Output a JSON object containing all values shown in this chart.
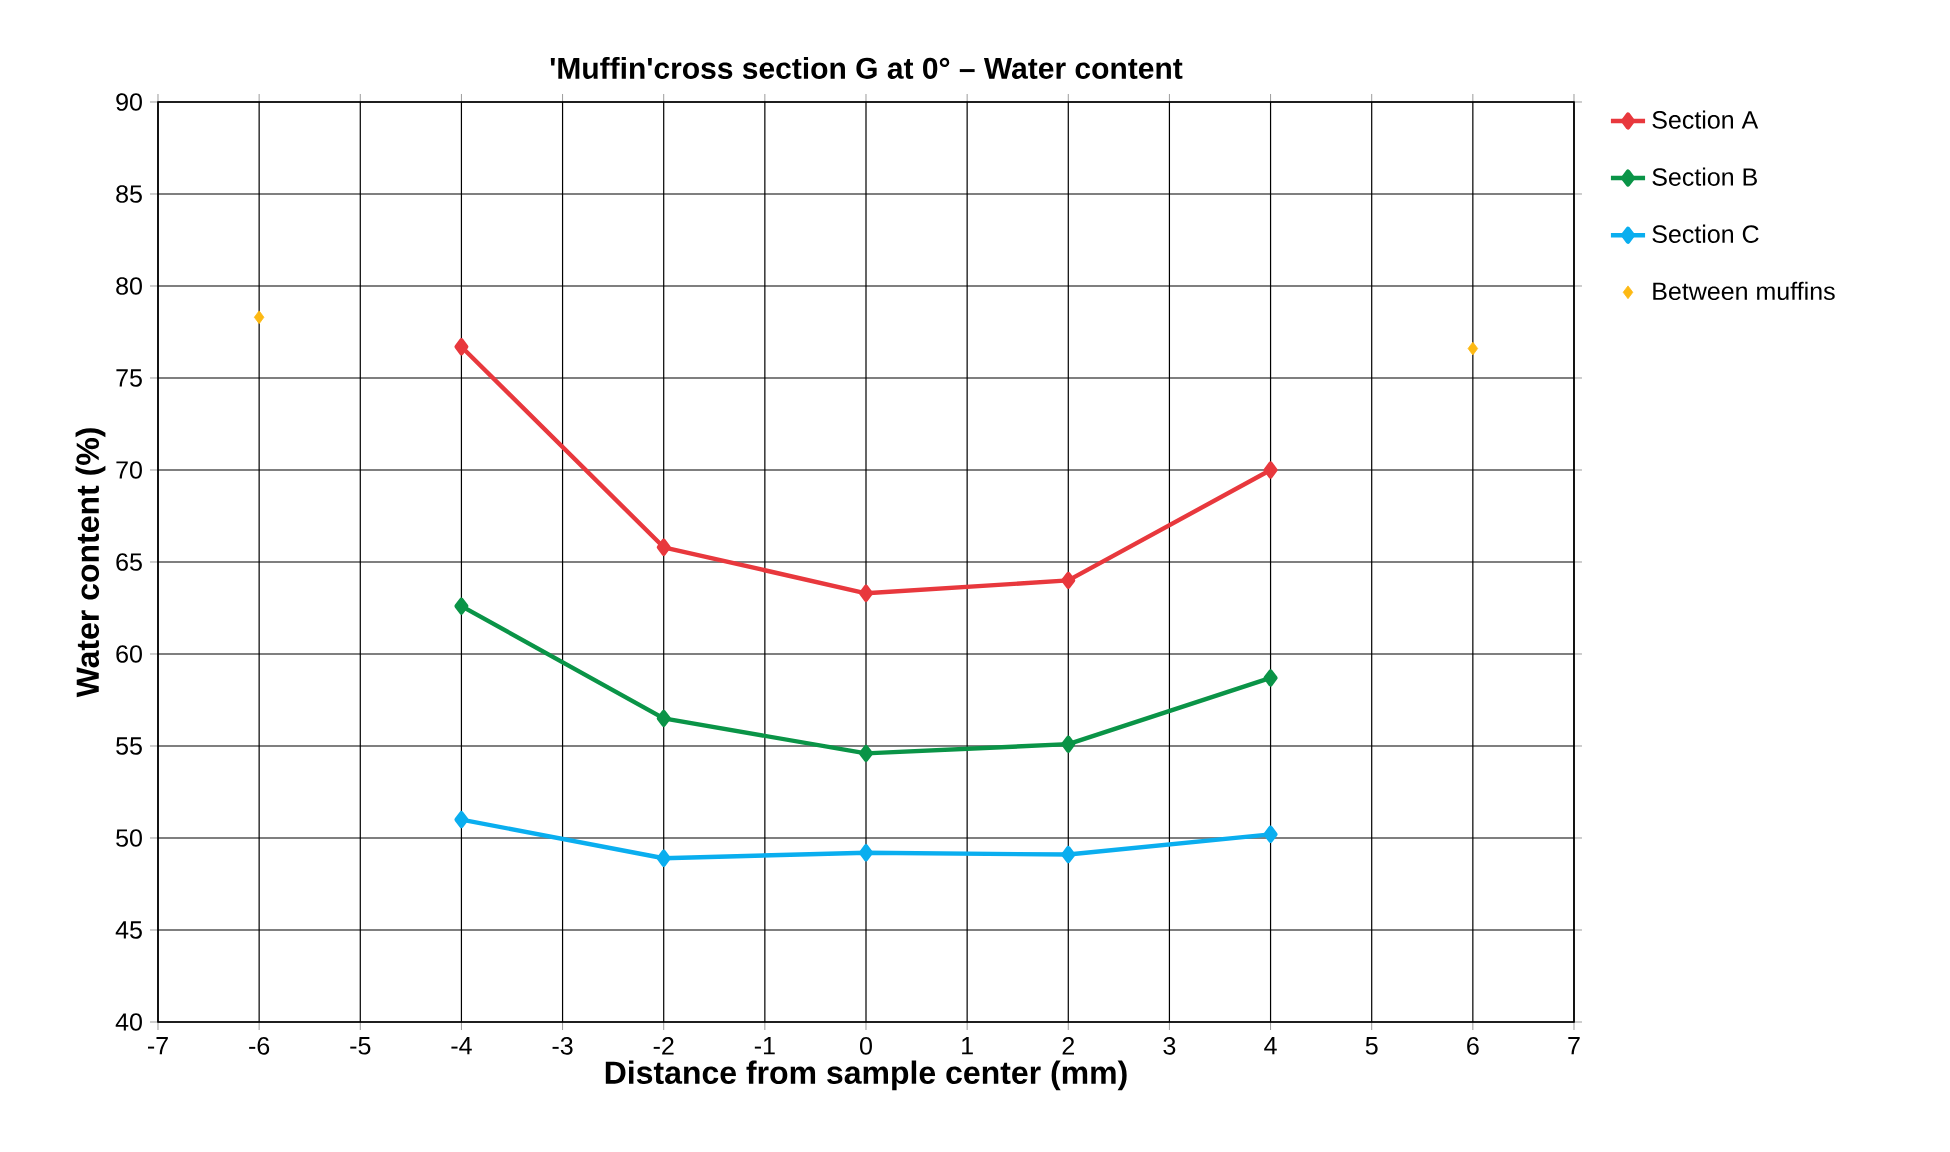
{
  "chart_data": {
    "type": "line",
    "title": "'Muffin'cross section G at 0° – Water content",
    "xlabel": "Distance from sample center (mm)",
    "ylabel": "Water content (%)",
    "x": [
      -4,
      -2,
      0,
      2,
      4
    ],
    "series": [
      {
        "name": "Section A",
        "color": "#e8383d",
        "values": [
          76.7,
          65.8,
          63.3,
          64.0,
          70.0
        ]
      },
      {
        "name": "Section B",
        "color": "#0a9447",
        "values": [
          62.6,
          56.5,
          54.6,
          55.1,
          58.7
        ]
      },
      {
        "name": "Section C",
        "color": "#0aaeef",
        "values": [
          51.0,
          48.9,
          49.2,
          49.1,
          50.2
        ]
      },
      {
        "name": "Between muffins",
        "type": "scatter",
        "color": "#fdb913",
        "x": [
          -6,
          6
        ],
        "values": [
          78.3,
          76.6
        ]
      }
    ],
    "xlim": [
      -7,
      7
    ],
    "xticks": [
      -7,
      -6,
      -5,
      -4,
      -3,
      -2,
      -1,
      0,
      1,
      2,
      3,
      4,
      5,
      6,
      7
    ],
    "ylim": [
      40,
      90
    ],
    "yticks": [
      40,
      45,
      50,
      55,
      60,
      65,
      70,
      75,
      80,
      85,
      90
    ],
    "grid": true,
    "legend": "right",
    "marker": "diamond",
    "line_style": "solid"
  }
}
